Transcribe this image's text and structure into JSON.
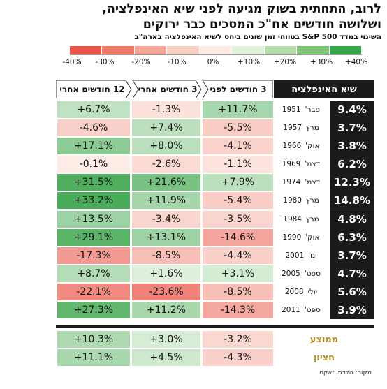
{
  "title_line1": "לרוב, התחתית בשוק מגיעה לפני שיא האינפלציה,",
  "title_line2": "ושלושה חודשים אח\"כ המסכים כבר ירוקים",
  "subtitle": "השינוי במדד S&P 500 בטווחי זמן שונים ביחס לשיא האינפלציה בארה\"ב",
  "scale_ticks": [
    "-40%",
    "-30%",
    "-20%",
    "-10%",
    "0%",
    "+10%",
    "+20%",
    "+30%",
    "+40%"
  ],
  "scale_colors": [
    "#ea5347",
    "#f0796c",
    "#f4a796",
    "#f9cfc2",
    "#fdebe4",
    "#e1f1dc",
    "#b7dcab",
    "#82c57a",
    "#3aa64a"
  ],
  "headers": {
    "inflation_peak": "שיא האינפלציה",
    "months_before": "3 חודשים לפני",
    "months_after_3": "3 חודשים אחרי",
    "months_after_12": "12 חודשים אחרי"
  },
  "chart_data": {
    "type": "table",
    "title": "לרוב, התחתית בשוק מגיעה לפני שיא האינפלציה, ושלושה חודשים אח\"כ המסכים כבר ירוקים",
    "subtitle": "השינוי במדד S&P 500 בטווחי זמן שונים ביחס לשיא האינפלציה בארה\"ב",
    "columns": [
      "שיא האינפלציה",
      "3 חודשים לפני",
      "3 חודשים אחרי",
      "12 חודשים אחרי"
    ],
    "rows": [
      {
        "month": "פבר'",
        "year": "1951",
        "inflation": "9.4%",
        "before_3m": "+11.7%",
        "after_3m": "-1.3%",
        "after_12m": "+6.7%"
      },
      {
        "month": "מרץ",
        "year": "1957",
        "inflation": "3.7%",
        "before_3m": "-5.5%",
        "after_3m": "+7.4%",
        "after_12m": "-4.6%"
      },
      {
        "month": "אוק'",
        "year": "1966",
        "inflation": "3.8%",
        "before_3m": "-4.1%",
        "after_3m": "+8.0%",
        "after_12m": "+17.1%"
      },
      {
        "month": "דצמ'",
        "year": "1969",
        "inflation": "6.2%",
        "before_3m": "-1.1%",
        "after_3m": "-2.6%",
        "after_12m": "-0.1%"
      },
      {
        "month": "דצמ'",
        "year": "1974",
        "inflation": "12.3%",
        "before_3m": "+7.9%",
        "after_3m": "+21.6%",
        "after_12m": "+31.5%"
      },
      {
        "month": "מרץ",
        "year": "1980",
        "inflation": "14.8%",
        "before_3m": "-5.4%",
        "after_3m": "+11.9%",
        "after_12m": "+33.2%"
      },
      {
        "month": "מרץ",
        "year": "1984",
        "inflation": "4.8%",
        "before_3m": "-3.5%",
        "after_3m": "-3.4%",
        "after_12m": "+13.5%"
      },
      {
        "month": "אוק'",
        "year": "1990",
        "inflation": "6.3%",
        "before_3m": "-14.6%",
        "after_3m": "+13.1%",
        "after_12m": "+29.1%"
      },
      {
        "month": "ינו'",
        "year": "2001",
        "inflation": "3.7%",
        "before_3m": "-4.4%",
        "after_3m": "-8.5%",
        "after_12m": "-17.3%"
      },
      {
        "month": "ספט'",
        "year": "2005",
        "inflation": "4.7%",
        "before_3m": "+3.1%",
        "after_3m": "+1.6%",
        "after_12m": "+8.7%"
      },
      {
        "month": "יולי",
        "year": "2008",
        "inflation": "5.6%",
        "before_3m": "-8.5%",
        "after_3m": "-23.6%",
        "after_12m": "-22.1%"
      },
      {
        "month": "ספט'",
        "year": "2011",
        "inflation": "3.9%",
        "before_3m": "-14.3%",
        "after_3m": "+11.2%",
        "after_12m": "+27.3%"
      }
    ],
    "summary": [
      {
        "label": "ממוצע",
        "before_3m": "-3.2%",
        "after_3m": "+3.0%",
        "after_12m": "+10.3%"
      },
      {
        "label": "חציון",
        "before_3m": "-4.3%",
        "after_3m": "+4.5%",
        "after_12m": "+11.1%"
      }
    ],
    "color_scale_range": [
      -40,
      40
    ]
  },
  "source": "מקור: גולדמן זאקס"
}
